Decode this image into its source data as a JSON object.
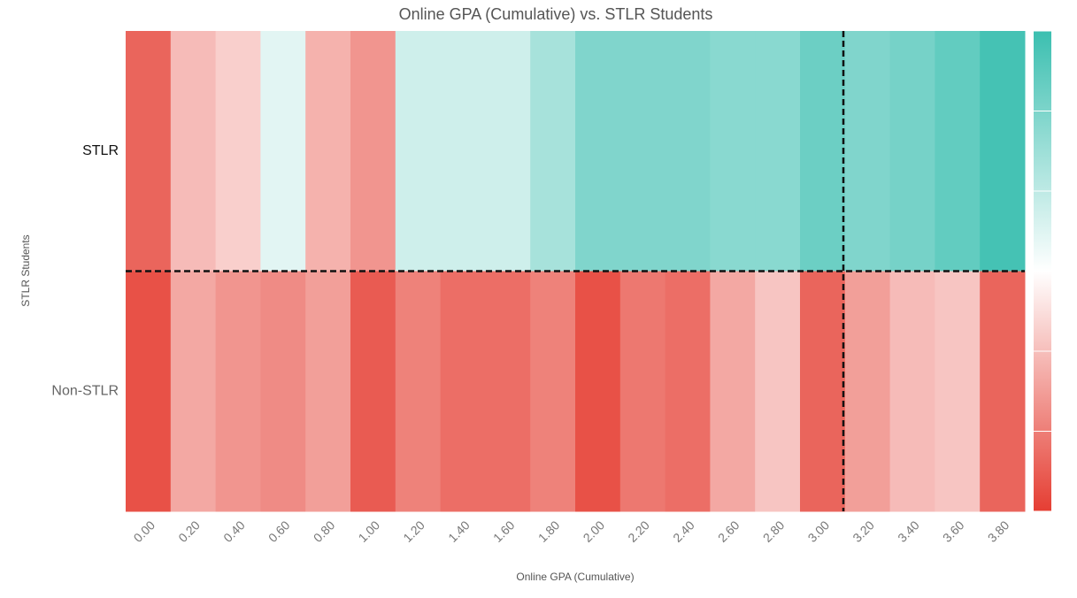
{
  "chart_data": {
    "type": "heatmap",
    "title": "Online GPA (Cumulative) vs. STLR Students",
    "x_label": "Online GPA (Cumulative)",
    "y_label": "STLR Students",
    "categories": [
      "0.00",
      "0.20",
      "0.40",
      "0.60",
      "0.80",
      "1.00",
      "1.20",
      "1.40",
      "1.60",
      "1.80",
      "2.00",
      "2.20",
      "2.40",
      "2.60",
      "2.80",
      "3.00",
      "3.20",
      "3.40",
      "3.60",
      "3.80"
    ],
    "rows": [
      "STLR",
      "Non-STLR"
    ],
    "values": [
      [
        -0.8,
        -0.35,
        -0.25,
        0.15,
        -0.4,
        -0.55,
        0.25,
        0.25,
        0.25,
        0.45,
        0.65,
        0.65,
        0.65,
        0.6,
        0.6,
        0.75,
        0.65,
        0.7,
        0.8,
        0.95
      ],
      [
        -0.9,
        -0.45,
        -0.55,
        -0.6,
        -0.5,
        -0.85,
        -0.65,
        -0.75,
        -0.75,
        -0.65,
        -0.9,
        -0.7,
        -0.75,
        -0.45,
        -0.3,
        -0.8,
        -0.5,
        -0.35,
        -0.3,
        -0.8
      ]
    ],
    "zlim": [
      -1,
      1
    ],
    "colorscale": [
      "#e53e33",
      "#ffffff",
      "#3bbfb0"
    ]
  }
}
